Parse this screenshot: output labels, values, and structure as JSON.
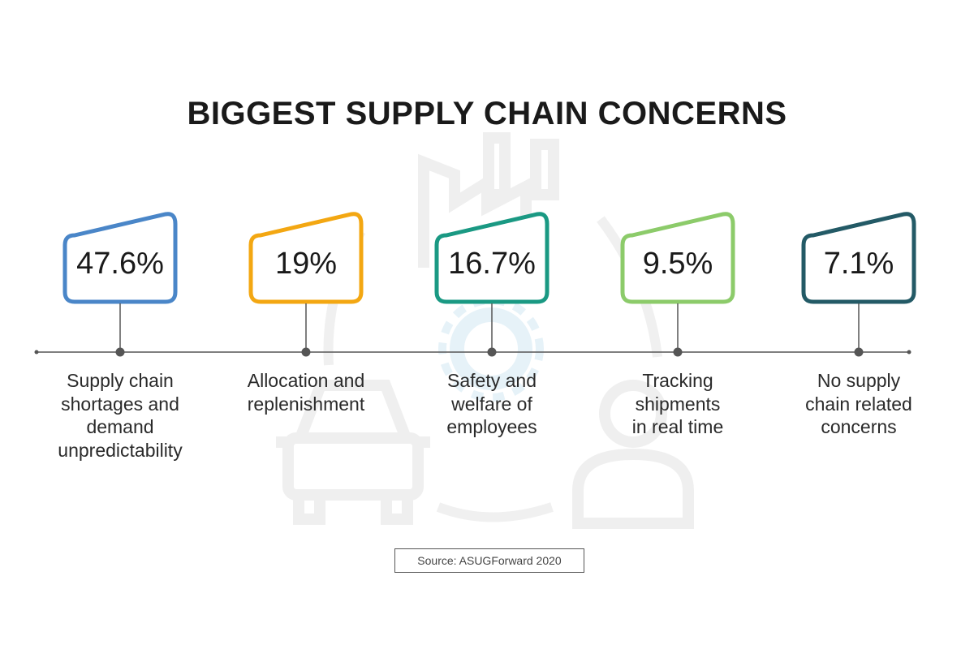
{
  "title": "BIGGEST SUPPLY CHAIN CONCERNS",
  "source": "Source: ASUGForward 2020",
  "chart_data": {
    "type": "bar",
    "title": "BIGGEST SUPPLY CHAIN CONCERNS",
    "unit": "%",
    "categories": [
      "Supply chain shortages and demand unpredictability",
      "Allocation and replenishment",
      "Safety and welfare of employees",
      "Tracking shipments in real time",
      "No supply chain related concerns"
    ],
    "values": [
      47.6,
      19,
      16.7,
      9.5,
      7.1
    ],
    "value_labels": [
      "47.6%",
      "19%",
      "16.7%",
      "9.5%",
      "7.1%"
    ],
    "label_lines": [
      "Supply chain\nshortages and\ndemand\nunpredictability",
      "Allocation and\nreplenishment",
      "Safety and\nwelfare of\nemployees",
      "Tracking\nshipments\nin real time",
      "No supply\nchain related\nconcerns"
    ],
    "colors": [
      "#4a86c8",
      "#f3a712",
      "#1a9983",
      "#8ccb6a",
      "#235a66"
    ]
  }
}
